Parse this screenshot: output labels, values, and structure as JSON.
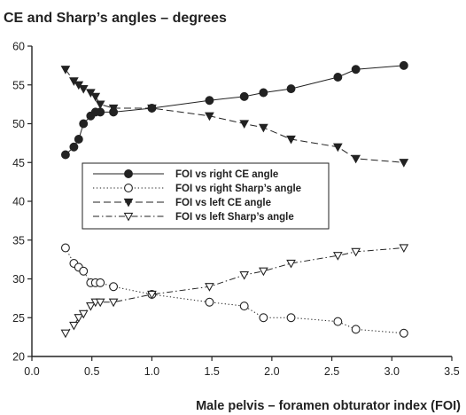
{
  "chart_data": {
    "type": "line",
    "title": "CE and Sharp’s angles – degrees",
    "xlabel": "Male pelvis – foramen obturator index (FOI)",
    "ylabel": "",
    "xlim": [
      0.0,
      3.5
    ],
    "ylim": [
      20,
      60
    ],
    "x_ticks": [
      "0.0",
      "0.5",
      "1.0",
      "1.5",
      "2.0",
      "2.5",
      "3.0",
      "3.5"
    ],
    "y_ticks": [
      "20",
      "25",
      "30",
      "35",
      "40",
      "45",
      "50",
      "55",
      "60"
    ],
    "grid": false,
    "legend_position": "middle-left",
    "series": [
      {
        "name": "FOI vs right CE angle",
        "line_style": "solid",
        "marker": "filled-circle",
        "x": [
          0.28,
          0.35,
          0.39,
          0.43,
          0.49,
          0.53,
          0.57,
          0.68,
          1.0,
          1.48,
          1.77,
          1.93,
          2.16,
          2.55,
          2.7,
          3.1
        ],
        "y": [
          46,
          47,
          48,
          50,
          51,
          51.5,
          51.5,
          51.5,
          52,
          53,
          53.5,
          54,
          54.5,
          56,
          57,
          57.5
        ]
      },
      {
        "name": "FOI vs right Sharp’s angle",
        "line_style": "dotted",
        "marker": "open-circle",
        "x": [
          0.28,
          0.35,
          0.39,
          0.43,
          0.49,
          0.53,
          0.57,
          0.68,
          1.0,
          1.48,
          1.77,
          1.93,
          2.16,
          2.55,
          2.7,
          3.1
        ],
        "y": [
          34,
          32,
          31.5,
          31,
          29.5,
          29.5,
          29.5,
          29,
          28,
          27,
          26.5,
          25,
          25,
          24.5,
          23.5,
          23
        ]
      },
      {
        "name": "FOI vs left CE angle",
        "line_style": "dashed",
        "marker": "filled-triangle-down",
        "x": [
          0.28,
          0.35,
          0.39,
          0.43,
          0.49,
          0.53,
          0.57,
          0.68,
          1.0,
          1.48,
          1.77,
          1.93,
          2.16,
          2.55,
          2.7,
          3.1
        ],
        "y": [
          57,
          55.5,
          55,
          54.5,
          54,
          53.5,
          52.5,
          52,
          52,
          51,
          50,
          49.5,
          48,
          47,
          45.5,
          45
        ]
      },
      {
        "name": "FOI vs left Sharp’s angle",
        "line_style": "dash-dot",
        "marker": "open-triangle-down",
        "x": [
          0.28,
          0.35,
          0.39,
          0.43,
          0.49,
          0.53,
          0.57,
          0.68,
          1.0,
          1.48,
          1.77,
          1.93,
          2.16,
          2.55,
          2.7,
          3.1
        ],
        "y": [
          23,
          24,
          25,
          25.5,
          26.5,
          27,
          27,
          27,
          28,
          29,
          30.5,
          31,
          32,
          33,
          33.5,
          34
        ]
      }
    ]
  }
}
